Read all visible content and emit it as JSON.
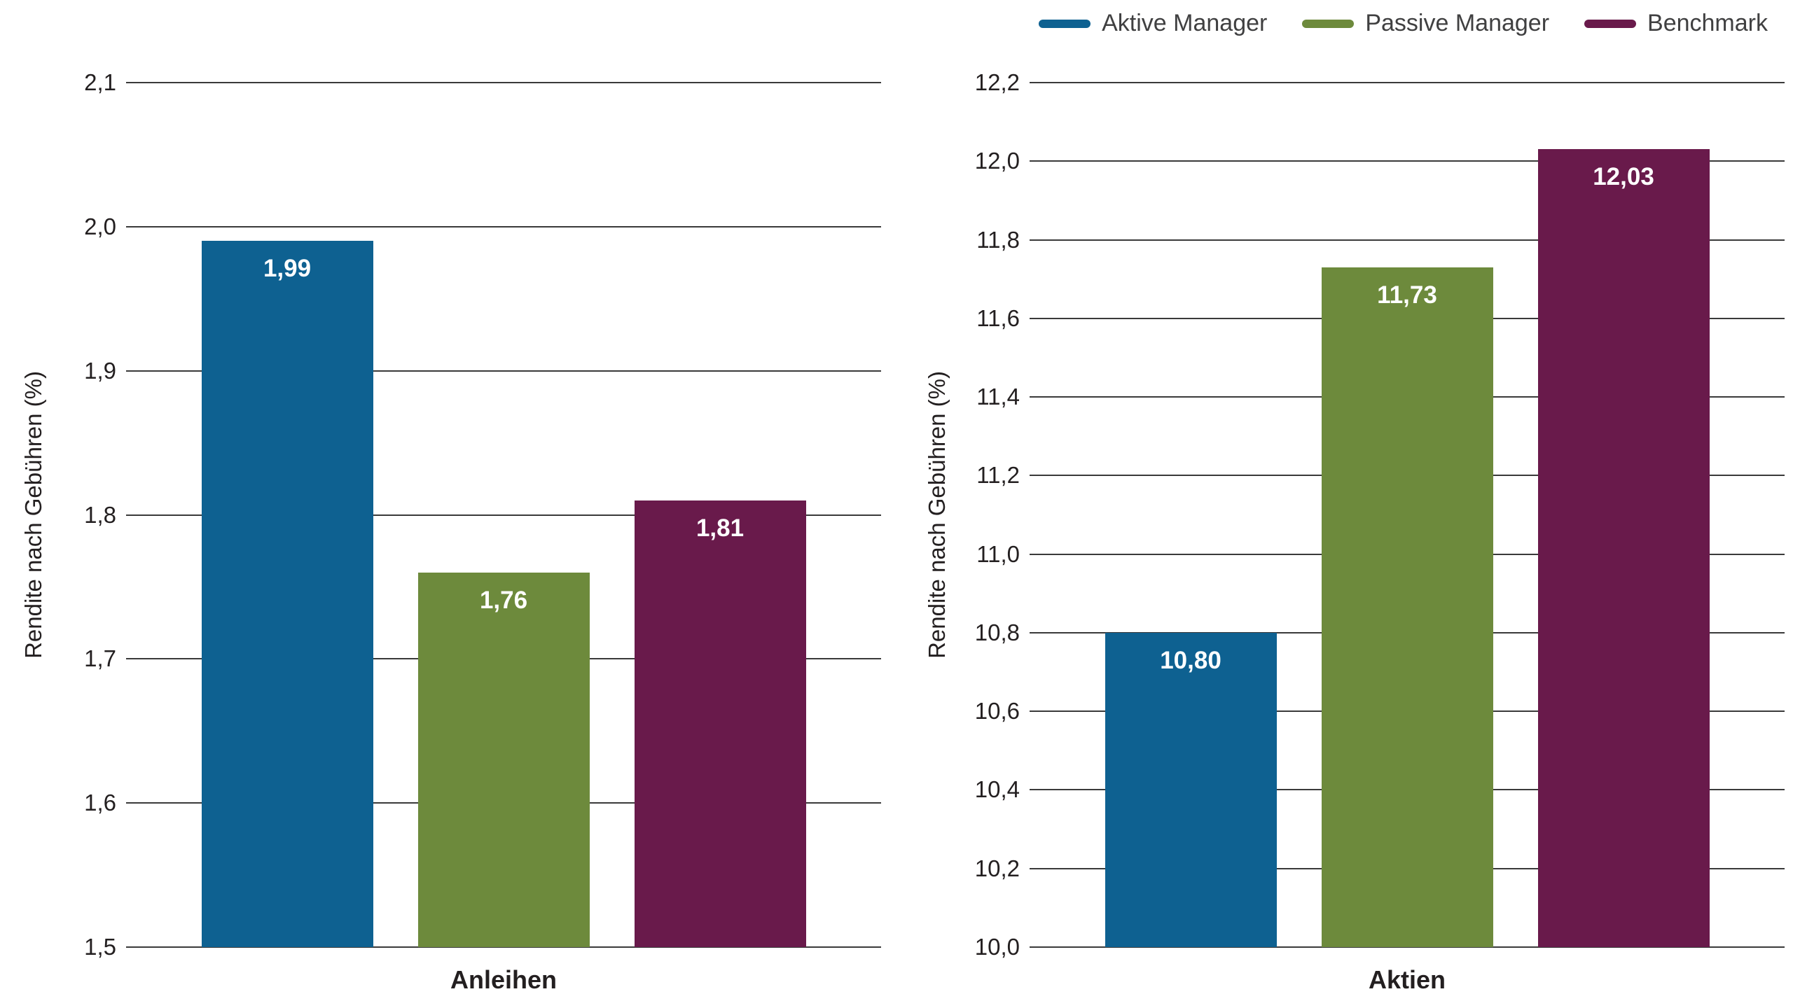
{
  "colors": {
    "blue": "#0e6191",
    "green": "#6d8a3c",
    "maroon": "#691a4b",
    "grid": "#3a3a3a",
    "text": "#231f20",
    "legend_text": "#404041",
    "bar_label": "#ffffff"
  },
  "legend": {
    "items": [
      {
        "label": "Aktive Manager",
        "color": "#0e6191"
      },
      {
        "label": "Passive Manager",
        "color": "#6d8a3c"
      },
      {
        "label": "Benchmark",
        "color": "#691a4b"
      }
    ]
  },
  "chart_data": [
    {
      "type": "bar",
      "title": "",
      "category": "Anleihen",
      "xlabel": "Anleihen",
      "ylabel": "Rendite nach Gebühren (%)",
      "ylim": [
        1.5,
        2.1
      ],
      "grid": true,
      "legend_position": "top-right",
      "yticks": [
        {
          "value": 1.5,
          "label": "1,5"
        },
        {
          "value": 1.6,
          "label": "1,6"
        },
        {
          "value": 1.7,
          "label": "1,7"
        },
        {
          "value": 1.8,
          "label": "1,8"
        },
        {
          "value": 1.9,
          "label": "1,9"
        },
        {
          "value": 2.0,
          "label": "2,0"
        },
        {
          "value": 2.1,
          "label": "2,1"
        }
      ],
      "series": [
        {
          "name": "Aktive Manager",
          "value": 1.99,
          "label": "1,99",
          "color": "#0e6191"
        },
        {
          "name": "Passive Manager",
          "value": 1.76,
          "label": "1,76",
          "color": "#6d8a3c"
        },
        {
          "name": "Benchmark",
          "value": 1.81,
          "label": "1,81",
          "color": "#691a4b"
        }
      ]
    },
    {
      "type": "bar",
      "title": "",
      "category": "Aktien",
      "xlabel": "Aktien",
      "ylabel": "Rendite nach Gebühren (%)",
      "ylim": [
        10.0,
        12.2
      ],
      "grid": true,
      "legend_position": "top-right",
      "yticks": [
        {
          "value": 10.0,
          "label": "10,0"
        },
        {
          "value": 10.2,
          "label": "10,2"
        },
        {
          "value": 10.4,
          "label": "10,4"
        },
        {
          "value": 10.6,
          "label": "10,6"
        },
        {
          "value": 10.8,
          "label": "10,8"
        },
        {
          "value": 11.0,
          "label": "11,0"
        },
        {
          "value": 11.2,
          "label": "11,2"
        },
        {
          "value": 11.4,
          "label": "11,4"
        },
        {
          "value": 11.6,
          "label": "11,6"
        },
        {
          "value": 11.8,
          "label": "11,8"
        },
        {
          "value": 12.0,
          "label": "12,0"
        },
        {
          "value": 12.2,
          "label": "12,2"
        }
      ],
      "series": [
        {
          "name": "Aktive Manager",
          "value": 10.8,
          "label": "10,80",
          "color": "#0e6191"
        },
        {
          "name": "Passive Manager",
          "value": 11.73,
          "label": "11,73",
          "color": "#6d8a3c"
        },
        {
          "name": "Benchmark",
          "value": 12.03,
          "label": "12,03",
          "color": "#691a4b"
        }
      ]
    }
  ]
}
